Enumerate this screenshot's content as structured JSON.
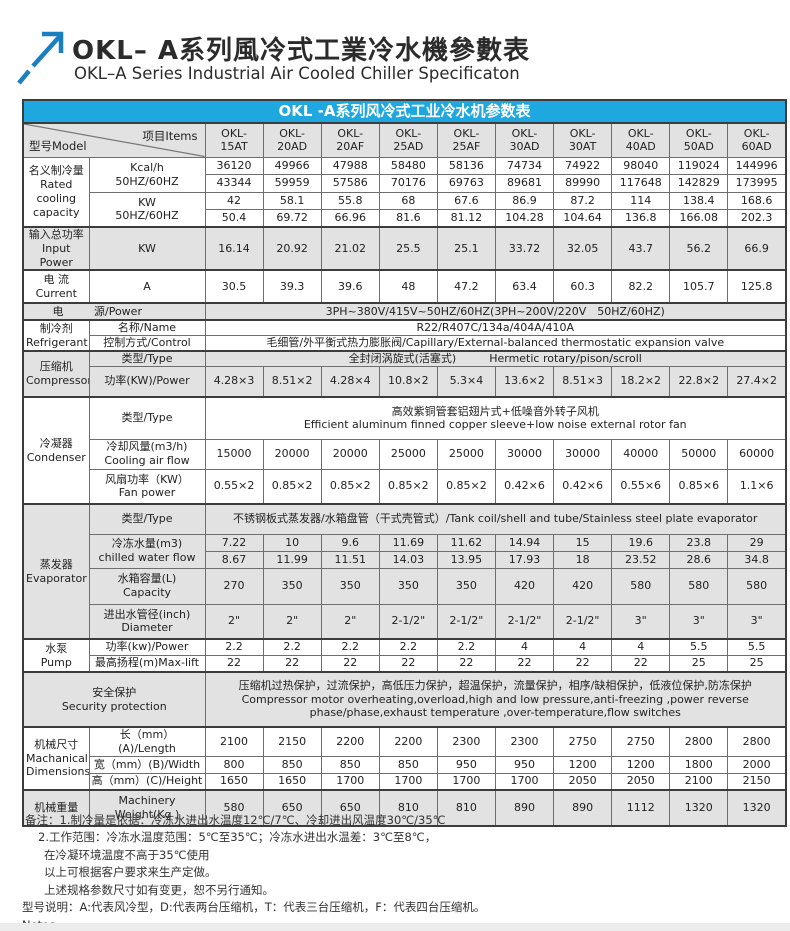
{
  "page": {
    "title_cn": "OKL– A系列風冷式工業冷水機參數表",
    "title_en": "OKL–A Series Industrial Air Cooled Chiller Specificaton"
  },
  "table": {
    "title": "OKL -A系列风冷式工业冷水机参数表",
    "corner": {
      "model": "型号Model",
      "items": "项目Items"
    },
    "models": [
      "OKL-\n15AT",
      "OKL-\n20AD",
      "OKL-\n20AF",
      "OKL-\n25AD",
      "OKL-\n25AF",
      "OKL-\n30AD",
      "OKL-\n30AT",
      "OKL-\n40AD",
      "OKL-\n50AD",
      "OKL-\n60AD"
    ],
    "labels": {
      "rated_group": "名义制冷量\nRated\ncooling\ncapacity",
      "rated_kcal": "Kcal/h\n50HZ/60HZ",
      "rated_kw": "KW\n50HZ/60HZ",
      "input_power_group": "输入总功率\nInput Power",
      "input_power_unit": "KW",
      "current_group": "电 流\nCurrent",
      "current_unit": "A",
      "power_cn": "电",
      "power_en": "源/Power",
      "refrigerant_group": "制冷剂\nRefrigerant",
      "name": "名称/Name",
      "control": "控制方式/Control",
      "compressor_group": "压缩机\nCompressor",
      "type": "类型/Type",
      "comp_power": "功率(KW)/Power",
      "condenser_group": "冷凝器\nCondenser",
      "air_flow": "冷却风量(m3/h)\nCooling air flow",
      "fan_power": "风扇功率（KW）\nFan power",
      "evaporator_group": "蒸发器\nEvaporator",
      "cwf": "冷冻水量(m3)\nchilled water flow",
      "capacity": "水箱容量(L)\nCapacity",
      "diameter": "进出水管径(inch)\nDiameter",
      "pump_group": "水泵\nPump",
      "pump_power": "功率(kw)/Power",
      "max_lift": "最高扬程(m)Max-lift",
      "security": "安全保护\nSecurity protection",
      "mech_group": "机械尺寸\nMachanical\nDimensions",
      "length": "长（mm）(A)/Length",
      "width": "宽（mm）(B)/Width",
      "height": "高（mm）(C)/Height",
      "weight_group": "机械重量",
      "weight": "Machinery\nWeight(Kg )"
    },
    "values": {
      "rated_kcal_50": [
        "36120",
        "49966",
        "47988",
        "58480",
        "58136",
        "74734",
        "74922",
        "98040",
        "119024",
        "144996"
      ],
      "rated_kcal_60": [
        "43344",
        "59959",
        "57586",
        "70176",
        "69763",
        "89681",
        "89990",
        "117648",
        "142829",
        "173995"
      ],
      "rated_kw_50": [
        "42",
        "58.1",
        "55.8",
        "68",
        "67.6",
        "86.9",
        "87.2",
        "114",
        "138.4",
        "168.6"
      ],
      "rated_kw_60": [
        "50.4",
        "69.72",
        "66.96",
        "81.6",
        "81.12",
        "104.28",
        "104.64",
        "136.8",
        "166.08",
        "202.3"
      ],
      "input_power": [
        "16.14",
        "20.92",
        "21.02",
        "25.5",
        "25.1",
        "33.72",
        "32.05",
        "43.7",
        "56.2",
        "66.9"
      ],
      "current": [
        "30.5",
        "39.3",
        "39.6",
        "48",
        "47.2",
        "63.4",
        "60.3",
        "82.2",
        "105.7",
        "125.8"
      ],
      "comp_power": [
        "4.28×3",
        "8.51×2",
        "4.28×4",
        "10.8×2",
        "5.3×4",
        "13.6×2",
        "8.51×3",
        "18.2×2",
        "22.8×2",
        "27.4×2"
      ],
      "air_flow": [
        "15000",
        "20000",
        "20000",
        "25000",
        "25000",
        "30000",
        "30000",
        "40000",
        "50000",
        "60000"
      ],
      "fan_power": [
        "0.55×2",
        "0.85×2",
        "0.85×2",
        "0.85×2",
        "0.85×2",
        "0.42×6",
        "0.42×6",
        "0.55×6",
        "0.85×6",
        "1.1×6"
      ],
      "cwf_50": [
        "7.22",
        "10",
        "9.6",
        "11.69",
        "11.62",
        "14.94",
        "15",
        "19.6",
        "23.8",
        "29"
      ],
      "cwf_60": [
        "8.67",
        "11.99",
        "11.51",
        "14.03",
        "13.95",
        "17.93",
        "18",
        "23.52",
        "28.6",
        "34.8"
      ],
      "capacity": [
        "270",
        "350",
        "350",
        "350",
        "350",
        "420",
        "420",
        "580",
        "580",
        "580"
      ],
      "diameter": [
        "2\"",
        "2\"",
        "2\"",
        "2-1/2\"",
        "2-1/2\"",
        "2-1/2\"",
        "2-1/2\"",
        "3\"",
        "3\"",
        "3\""
      ],
      "pump_power": [
        "2.2",
        "2.2",
        "2.2",
        "2.2",
        "2.2",
        "4",
        "4",
        "4",
        "5.5",
        "5.5"
      ],
      "max_lift": [
        "22",
        "22",
        "22",
        "22",
        "22",
        "22",
        "22",
        "22",
        "25",
        "25"
      ],
      "length": [
        "2100",
        "2150",
        "2200",
        "2200",
        "2300",
        "2300",
        "2750",
        "2750",
        "2800",
        "2800"
      ],
      "width": [
        "800",
        "850",
        "850",
        "850",
        "950",
        "950",
        "1200",
        "1200",
        "1800",
        "2000"
      ],
      "height": [
        "1650",
        "1650",
        "1700",
        "1700",
        "1700",
        "1700",
        "2050",
        "2050",
        "2100",
        "2150"
      ],
      "weight": [
        "580",
        "650",
        "650",
        "810",
        "810",
        "890",
        "890",
        "1112",
        "1320",
        "1320"
      ]
    },
    "merged": {
      "power": "3PH~380V/415V~50HZ/60HZ(3PH~200V/220V　50HZ/60HZ)",
      "refrigerant_name": "R22/R407C/134a/404A/410A",
      "refrigerant_control": "毛细管/外平衡式热力膨胀阀/Capillary/External-balanced thermostatic expansion valve",
      "comp_type": "全封闭涡旋式(活塞式)　　　Hermetic rotary/pison/scroll",
      "cond_type": "高效紫铜管套铝翅片式+低噪音外转子风机\nEfficient aluminum finned copper sleeve+low noise external rotor fan",
      "evap_type": "不锈钢板式蒸发器/水箱盘管（干式壳管式）/Tank coil/shell and tube/Stainless steel plate evaporator",
      "security": "压缩机过热保护，过流保护，高低压力保护，超温保护，流量保护，相序/缺相保护，低液位保护,防冻保护\nCompressor motor overheating,overload,high and low pressure,anti-freezing ,power reverse phase/phase,exhaust temperature ,over-temperature,flow switches"
    }
  },
  "notes": {
    "lines": [
      "备注：1.制冷量是依据：冷冻水进出水温度12℃/7℃、冷却进出风温度30℃/35℃",
      "2.工作范围：冷冻水温度范围：5℃至35℃；冷冻水进出水温差：3℃至8℃，",
      "在冷凝环境温度不高于35℃使用",
      "以上可根据客户要求来生产定做。",
      "上述规格参数尺寸如有变更，恕不另行通知。",
      "型号说明：A:代表风冷型，D:代表两台压缩机，T：代表三台压缩机，F：代表四台压缩机。",
      "Notes:"
    ]
  },
  "colors": {
    "accent_cyan": "#1fa7e0",
    "arrow_blue": "#1a7ec2",
    "block_gray": "#e2e2e2"
  }
}
